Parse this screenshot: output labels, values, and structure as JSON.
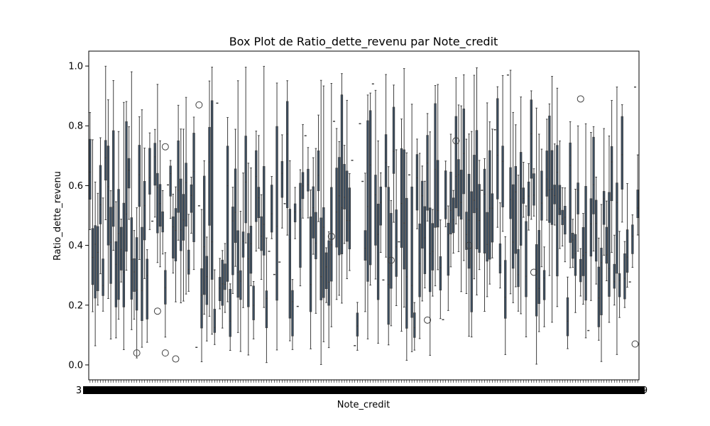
{
  "chart_data": {
    "type": "box",
    "title": "Box Plot de Ratio_dette_revenu par Note_credit",
    "xlabel": "Note_credit",
    "ylabel": "Ratio_dette_revenu",
    "ylim": [
      -0.05,
      1.05
    ],
    "yticks": [
      0.0,
      0.2,
      0.4,
      0.6,
      0.8,
      1.0
    ],
    "ytick_labels": [
      "0.0",
      "0.2",
      "0.4",
      "0.6",
      "0.8",
      "1.0"
    ],
    "xtick_labels_visible": [
      "3",
      "9"
    ],
    "category_count": 212,
    "grid": false,
    "legend": "none",
    "colors": {
      "box_fill": "#3b4f63",
      "line": "#3f3f3f",
      "frame": "#000000"
    },
    "outliers": [
      {
        "category_index": 18,
        "value": 0.04
      },
      {
        "category_index": 26,
        "value": 0.18
      },
      {
        "category_index": 29,
        "value": 0.73
      },
      {
        "category_index": 29,
        "value": 0.04
      },
      {
        "category_index": 33,
        "value": 0.02
      },
      {
        "category_index": 42,
        "value": 0.87
      },
      {
        "category_index": 93,
        "value": 0.43
      },
      {
        "category_index": 116,
        "value": 0.35
      },
      {
        "category_index": 130,
        "value": 0.15
      },
      {
        "category_index": 141,
        "value": 0.75
      },
      {
        "category_index": 146,
        "value": 0.4
      },
      {
        "category_index": 171,
        "value": 0.31
      },
      {
        "category_index": 189,
        "value": 0.89
      },
      {
        "category_index": 210,
        "value": 0.07
      }
    ]
  }
}
